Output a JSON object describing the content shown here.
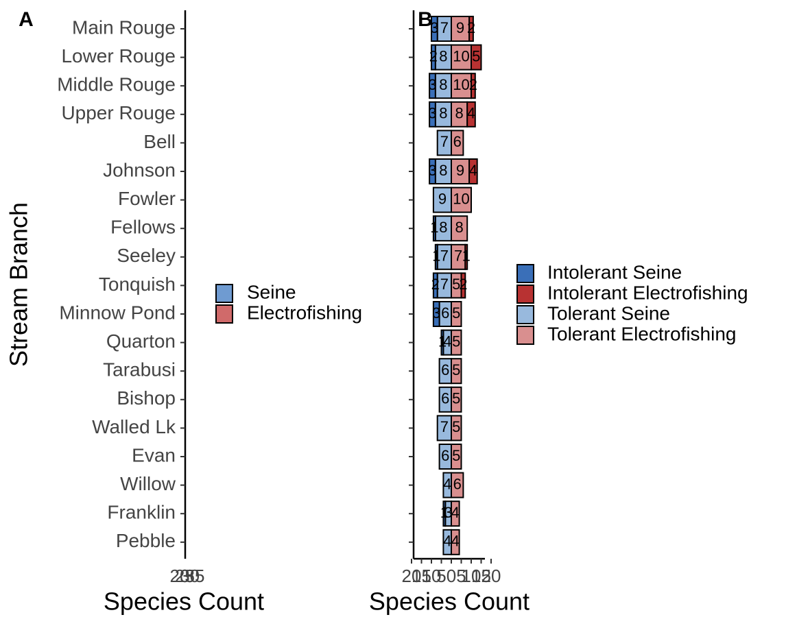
{
  "chart_data": [
    {
      "type": "bar",
      "panel": "A",
      "x_label": "Species Count",
      "y_label": "Stream Branch",
      "categories": [
        "Main Rouge",
        "Lower Rouge",
        "Middle Rouge",
        "Upper Rouge",
        "Bell",
        "Johnson",
        "Fowler",
        "Fellows",
        "Seeley",
        "Tonquish",
        "Minnow Pond",
        "Quarton",
        "Tarabusi",
        "Bishop",
        "Walled Lk",
        "Evan",
        "Willow",
        "Franklin",
        "Pebble"
      ],
      "legend": [
        {
          "name": "Seine",
          "color": "#6f9bd1"
        },
        {
          "name": "Electrofishing",
          "color": "#d06a6a"
        }
      ],
      "xlim": [
        20,
        35
      ],
      "xticks": [
        20,
        25,
        30,
        35
      ]
    },
    {
      "type": "diverging-bar",
      "panel": "B",
      "x_label": "Species Count",
      "categories": [
        "Main Rouge",
        "Lower Rouge",
        "Middle Rouge",
        "Upper Rouge",
        "Bell",
        "Johnson",
        "Fowler",
        "Fellows",
        "Seeley",
        "Tonquish",
        "Minnow Pond",
        "Quarton",
        "Tarabusi",
        "Bishop",
        "Walled Lk",
        "Evan",
        "Willow",
        "Franklin",
        "Pebble"
      ],
      "xlim": [
        -20,
        20
      ],
      "xticks": [
        {
          "value": -20,
          "label": "20"
        },
        {
          "value": -15,
          "label": "15"
        },
        {
          "value": -10,
          "label": "10"
        },
        {
          "value": -5,
          "label": "5"
        },
        0,
        5,
        10,
        15,
        20
      ],
      "series": [
        {
          "name": "Tolerant Seine",
          "color": "#98b9dd",
          "values": [
            -7,
            -8,
            -8,
            -8,
            -7,
            -8,
            -9,
            -8,
            -7,
            -7,
            -6,
            -4,
            -6,
            -6,
            -7,
            -6,
            -4,
            -3,
            -4
          ],
          "value_labels": [
            "7",
            "8",
            "8",
            "8",
            "7",
            "8",
            "9",
            "8",
            "7",
            "7",
            "6",
            "4",
            "6",
            "6",
            "7",
            "6",
            "4",
            "3",
            "4"
          ]
        },
        {
          "name": "Intolerant Seine",
          "color": "#3a6fb8",
          "values": [
            -3,
            -2,
            -3,
            -3,
            null,
            -3,
            null,
            -1,
            -1,
            -2,
            -3,
            -1,
            null,
            null,
            null,
            null,
            null,
            -1,
            null
          ],
          "value_labels": [
            "3",
            "2",
            "3",
            "3",
            null,
            "3",
            null,
            "1",
            "1",
            "2",
            "3",
            "1",
            null,
            null,
            null,
            null,
            null,
            "1",
            null
          ]
        },
        {
          "name": "Tolerant Electrofishing",
          "color": "#d98f8f",
          "values": [
            9,
            10,
            10,
            8,
            6,
            9,
            10,
            8,
            7,
            5,
            5,
            5,
            5,
            5,
            5,
            5,
            6,
            4,
            4
          ]
        },
        {
          "name": "Intolerant Electrofishing",
          "color": "#b83232",
          "values": [
            2,
            5,
            2,
            4,
            null,
            4,
            null,
            null,
            1,
            2,
            null,
            null,
            null,
            null,
            null,
            null,
            null,
            null,
            null
          ]
        }
      ],
      "legend_order": [
        "Intolerant Seine",
        "Intolerant Electrofishing",
        "Tolerant Seine",
        "Tolerant Electrofishing"
      ]
    }
  ]
}
